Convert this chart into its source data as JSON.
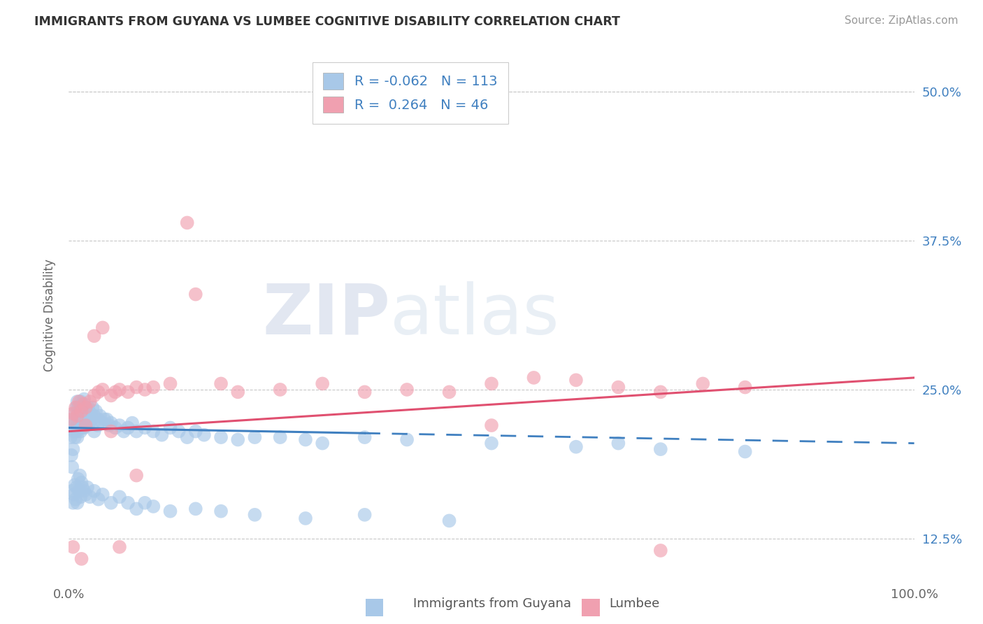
{
  "title": "IMMIGRANTS FROM GUYANA VS LUMBEE COGNITIVE DISABILITY CORRELATION CHART",
  "source": "Source: ZipAtlas.com",
  "ylabel": "Cognitive Disability",
  "y_ticks": [
    0.125,
    0.25,
    0.375,
    0.5
  ],
  "y_tick_labels": [
    "12.5%",
    "25.0%",
    "37.5%",
    "50.0%"
  ],
  "legend_labels": [
    "Immigrants from Guyana",
    "Lumbee"
  ],
  "legend_r": [
    -0.062,
    0.264
  ],
  "legend_n": [
    113,
    46
  ],
  "blue_color": "#A8C8E8",
  "pink_color": "#F0A0B0",
  "blue_line_color": "#4080C0",
  "pink_line_color": "#E05070",
  "legend_text_color": "#4080C0",
  "background_color": "#FFFFFF",
  "watermark_zip": "ZIP",
  "watermark_atlas": "atlas",
  "xlim": [
    0,
    100
  ],
  "ylim": [
    0.09,
    0.535
  ],
  "blue_scatter_x": [
    0.2,
    0.3,
    0.4,
    0.5,
    0.5,
    0.6,
    0.6,
    0.7,
    0.7,
    0.8,
    0.8,
    0.9,
    0.9,
    1.0,
    1.0,
    1.0,
    1.1,
    1.1,
    1.2,
    1.2,
    1.3,
    1.3,
    1.4,
    1.4,
    1.5,
    1.5,
    1.6,
    1.6,
    1.7,
    1.8,
    1.8,
    1.9,
    2.0,
    2.0,
    2.1,
    2.2,
    2.3,
    2.4,
    2.5,
    2.6,
    2.7,
    2.8,
    3.0,
    3.0,
    3.2,
    3.4,
    3.5,
    3.7,
    4.0,
    4.2,
    4.5,
    4.8,
    5.0,
    5.5,
    6.0,
    6.5,
    7.0,
    7.5,
    8.0,
    9.0,
    10.0,
    11.0,
    12.0,
    13.0,
    14.0,
    15.0,
    16.0,
    18.0,
    20.0,
    22.0,
    25.0,
    28.0,
    30.0,
    35.0,
    40.0,
    50.0,
    60.0,
    65.0,
    70.0,
    80.0,
    0.4,
    0.5,
    0.6,
    0.7,
    0.8,
    0.9,
    1.0,
    1.1,
    1.2,
    1.3,
    1.4,
    1.5,
    1.6,
    1.8,
    2.0,
    2.2,
    2.5,
    3.0,
    3.5,
    4.0,
    5.0,
    6.0,
    7.0,
    8.0,
    9.0,
    10.0,
    12.0,
    15.0,
    18.0,
    22.0,
    28.0,
    35.0,
    45.0
  ],
  "blue_scatter_y": [
    0.21,
    0.195,
    0.185,
    0.225,
    0.2,
    0.22,
    0.215,
    0.23,
    0.21,
    0.225,
    0.218,
    0.235,
    0.215,
    0.24,
    0.225,
    0.21,
    0.235,
    0.22,
    0.23,
    0.218,
    0.235,
    0.225,
    0.24,
    0.215,
    0.235,
    0.222,
    0.238,
    0.218,
    0.23,
    0.242,
    0.218,
    0.228,
    0.235,
    0.22,
    0.232,
    0.228,
    0.235,
    0.222,
    0.228,
    0.23,
    0.225,
    0.235,
    0.228,
    0.215,
    0.232,
    0.22,
    0.225,
    0.228,
    0.222,
    0.225,
    0.225,
    0.22,
    0.222,
    0.218,
    0.22,
    0.215,
    0.218,
    0.222,
    0.215,
    0.218,
    0.215,
    0.212,
    0.218,
    0.215,
    0.21,
    0.215,
    0.212,
    0.21,
    0.208,
    0.21,
    0.21,
    0.208,
    0.205,
    0.21,
    0.208,
    0.205,
    0.202,
    0.205,
    0.2,
    0.198,
    0.165,
    0.155,
    0.162,
    0.17,
    0.158,
    0.168,
    0.155,
    0.175,
    0.165,
    0.178,
    0.16,
    0.172,
    0.168,
    0.165,
    0.162,
    0.168,
    0.16,
    0.165,
    0.158,
    0.162,
    0.155,
    0.16,
    0.155,
    0.15,
    0.155,
    0.152,
    0.148,
    0.15,
    0.148,
    0.145,
    0.142,
    0.145,
    0.14
  ],
  "pink_scatter_x": [
    0.3,
    0.5,
    0.8,
    1.0,
    1.2,
    1.5,
    1.8,
    2.0,
    2.5,
    3.0,
    3.5,
    4.0,
    5.0,
    5.5,
    6.0,
    7.0,
    8.0,
    9.0,
    10.0,
    12.0,
    14.0,
    15.0,
    18.0,
    20.0,
    25.0,
    30.0,
    35.0,
    40.0,
    45.0,
    50.0,
    55.0,
    60.0,
    65.0,
    70.0,
    75.0,
    80.0,
    2.0,
    3.0,
    5.0,
    8.0,
    0.5,
    1.5,
    4.0,
    6.0,
    50.0,
    70.0
  ],
  "pink_scatter_y": [
    0.225,
    0.23,
    0.235,
    0.228,
    0.24,
    0.232,
    0.238,
    0.235,
    0.24,
    0.245,
    0.248,
    0.25,
    0.245,
    0.248,
    0.25,
    0.248,
    0.252,
    0.25,
    0.252,
    0.255,
    0.39,
    0.33,
    0.255,
    0.248,
    0.25,
    0.255,
    0.248,
    0.25,
    0.248,
    0.255,
    0.26,
    0.258,
    0.252,
    0.248,
    0.255,
    0.252,
    0.22,
    0.295,
    0.215,
    0.178,
    0.118,
    0.108,
    0.302,
    0.118,
    0.22,
    0.115
  ]
}
